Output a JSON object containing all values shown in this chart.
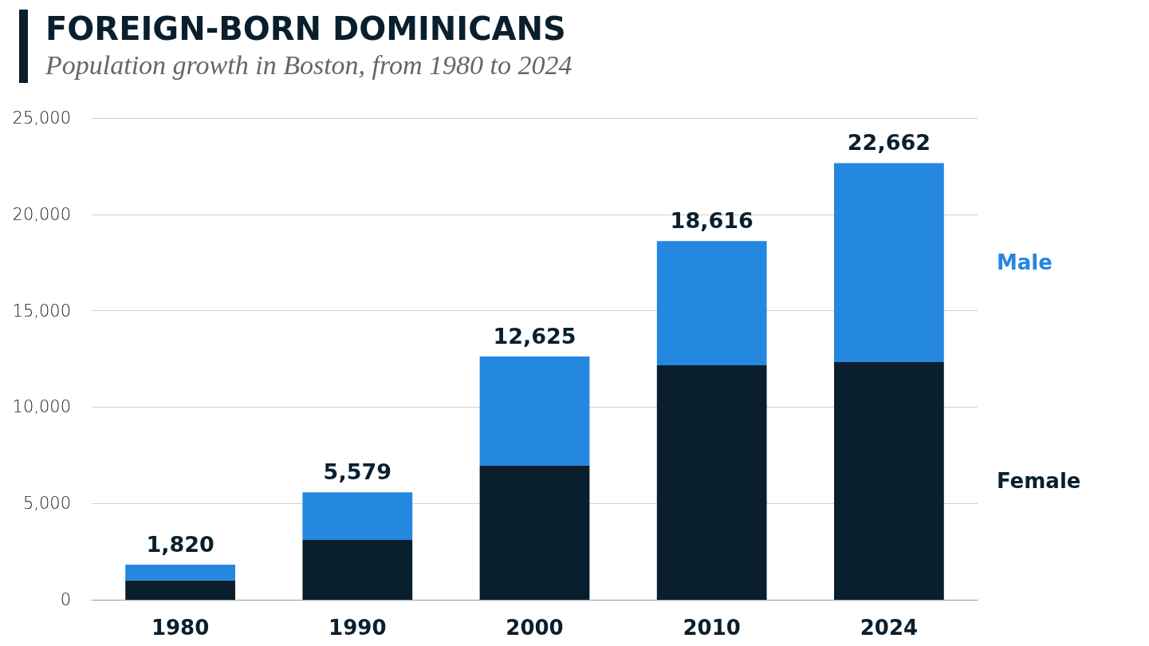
{
  "chart_data": {
    "type": "bar",
    "title": "FOREIGN-BORN DOMINICANS",
    "subtitle": "Population growth in Boston, from 1980 to 2024",
    "categories": [
      "1980",
      "1990",
      "2000",
      "2010",
      "2024"
    ],
    "series": [
      {
        "name": "Female",
        "color": "#0a1f2e",
        "values": [
          1000,
          3100,
          6950,
          12170,
          12330
        ]
      },
      {
        "name": "Male",
        "color": "#2487e0",
        "values": [
          820,
          2479,
          5675,
          6446,
          10332
        ]
      }
    ],
    "stacked": true,
    "totals": [
      "1,820",
      "5,579",
      "12,625",
      "18,616",
      "22,662"
    ],
    "ylim": [
      0,
      25000
    ],
    "yticks": [
      0,
      {
        "value": 5000,
        "label": "5,000"
      },
      {
        "value": 10000,
        "label": "10,000"
      },
      {
        "value": 15000,
        "label": "15,000"
      },
      {
        "value": 20000,
        "label": "20,000"
      },
      {
        "value": 25000,
        "label": "25,000"
      }
    ],
    "grid": "y"
  }
}
